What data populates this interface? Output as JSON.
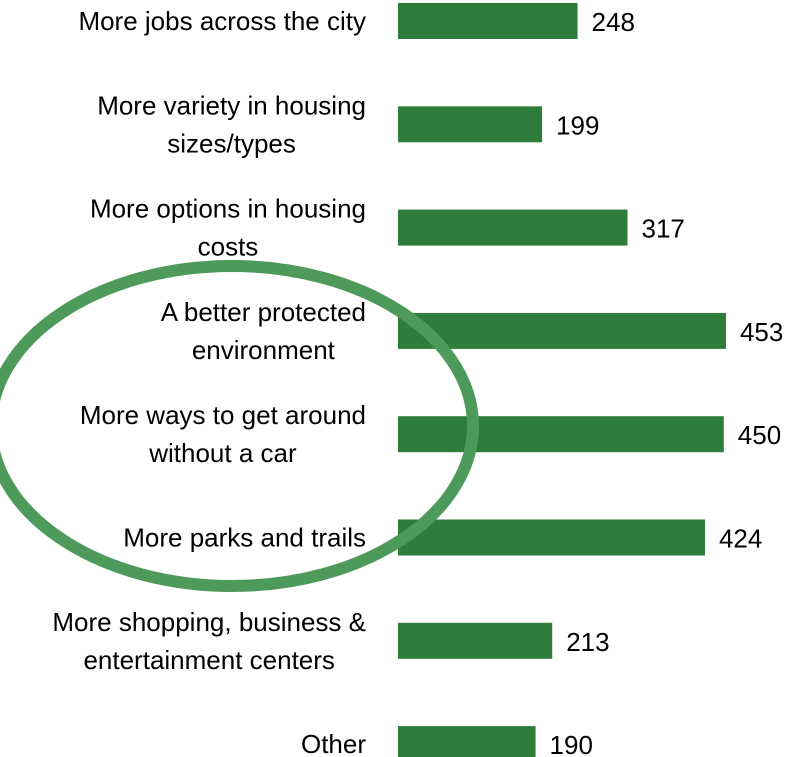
{
  "chart_data": {
    "type": "bar",
    "orientation": "horizontal",
    "categories": [
      "More jobs across the city",
      "More variety in housing sizes/types",
      "More options in housing costs",
      "A better protected environment",
      "More ways to get around without a car",
      "More parks and trails",
      "More shopping, business & entertainment centers",
      "Other"
    ],
    "category_lines": [
      [
        "More jobs across the city"
      ],
      [
        "More variety in housing",
        "sizes/types"
      ],
      [
        "More options in housing",
        "costs"
      ],
      [
        "A better protected",
        "environment"
      ],
      [
        "More ways to get around",
        "without a car"
      ],
      [
        "More parks and trails"
      ],
      [
        "More shopping, business &",
        "entertainment centers"
      ],
      [
        "Other"
      ]
    ],
    "values": [
      248,
      199,
      317,
      453,
      450,
      424,
      213,
      190
    ],
    "data_labels": [
      "248",
      "199",
      "317",
      "453",
      "450",
      "424",
      "213",
      "190"
    ],
    "title": "",
    "xlabel": "",
    "ylabel": "",
    "xlim": [
      0,
      500
    ],
    "grid": false,
    "legend": "none",
    "colors": {
      "bar": "#2e7d3a",
      "annotation_ellipse": "#4e9a5a",
      "text": "#000000"
    },
    "annotations": [
      {
        "type": "ellipse-highlight",
        "covers_categories": [
          "A better protected environment",
          "More ways to get around without a car",
          "More parks and trails"
        ]
      }
    ]
  }
}
